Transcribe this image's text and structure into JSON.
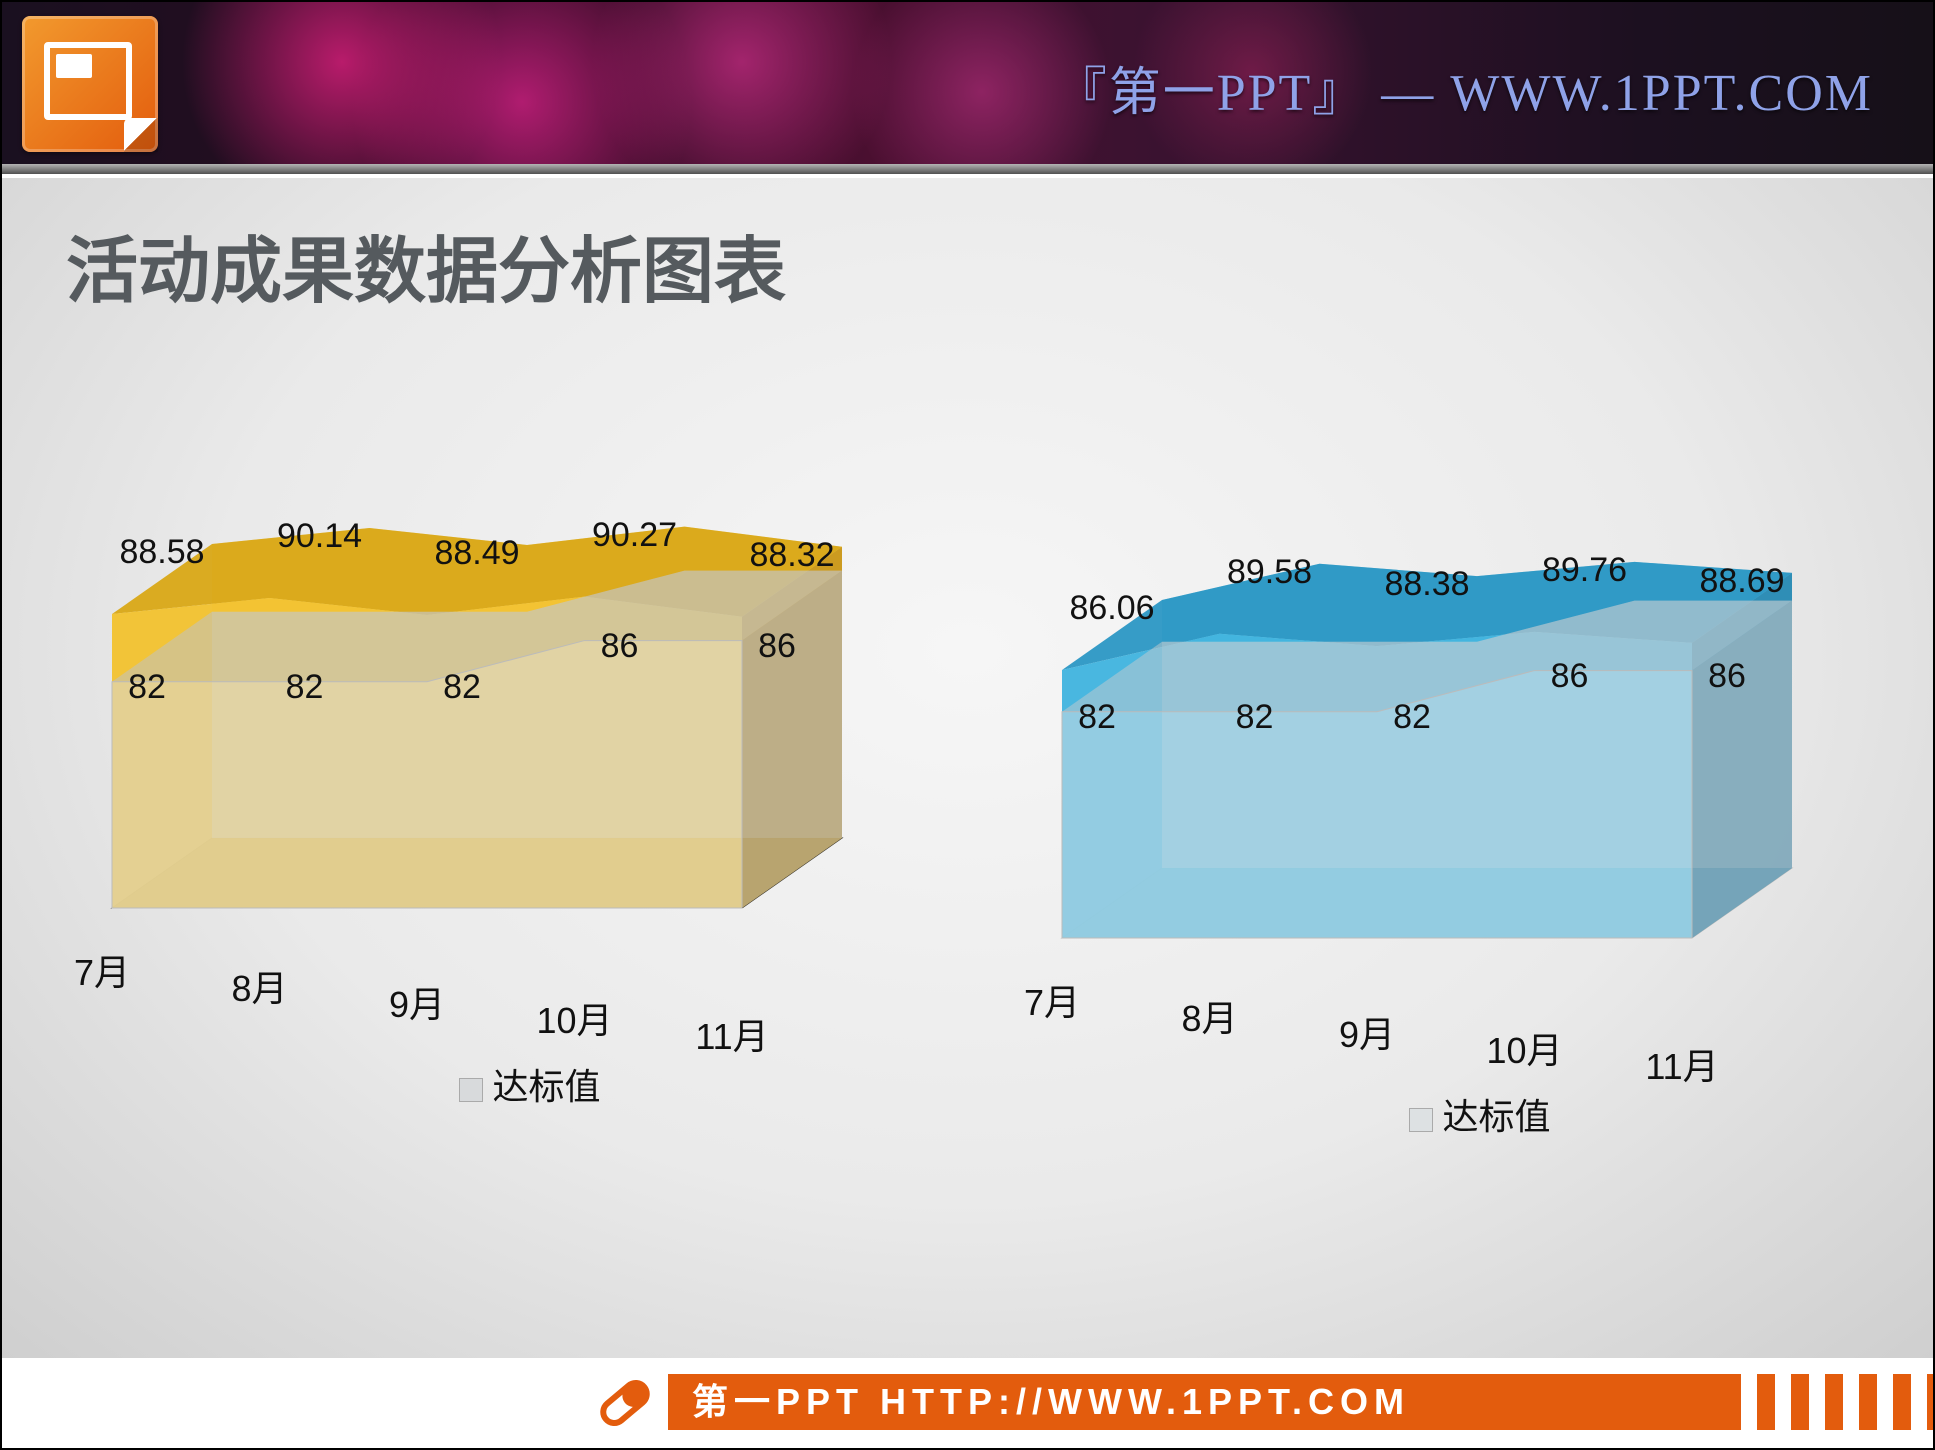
{
  "header": {
    "brand_text": "『第一PPT』 — WWW.1PPT.COM",
    "brand_color": "#8fa2e8"
  },
  "title": "活动成果数据分析图表",
  "title_color": "#555a5e",
  "title_fontsize": 72,
  "background_gradient": [
    "#f6f6f6",
    "#eaeaea",
    "#cfcfcf"
  ],
  "chart_left": {
    "type": "area-3d",
    "categories": [
      "7月",
      "8月",
      "9月",
      "10月",
      "11月"
    ],
    "series_value": {
      "values": [
        88.58,
        90.14,
        88.49,
        90.27,
        88.32
      ],
      "fill_color": "#f2c22e",
      "fill_color_top": "#d9a816",
      "side_color": "#c9981a",
      "opacity": 0.95
    },
    "series_baseline": {
      "name": "达标值",
      "values": [
        82,
        82,
        82,
        86,
        86
      ],
      "fill_color": "#d8dadc",
      "fill_color_top": "#bfc2c4",
      "side_color": "#aeb1b3",
      "opacity": 0.55
    },
    "floor_color": "#3a3a3a",
    "y_range": [
      60,
      95
    ],
    "value_label_fontsize": 34,
    "category_label_fontsize": 36,
    "depth_offset_x": 100,
    "depth_offset_y": 70,
    "legend_swatch_color": "#d8dadc"
  },
  "chart_right": {
    "type": "area-3d",
    "categories": [
      "7月",
      "8月",
      "9月",
      "10月",
      "11月"
    ],
    "series_value": {
      "values": [
        86.06,
        89.58,
        88.38,
        89.76,
        88.69
      ],
      "fill_color": "#3fb3de",
      "fill_color_top": "#2b97c4",
      "side_color": "#2a8ab3",
      "opacity": 0.95
    },
    "series_baseline": {
      "name": "达标值",
      "values": [
        82,
        82,
        82,
        86,
        86
      ],
      "fill_color": "#dde1e3",
      "fill_color_top": "#c7cbcd",
      "side_color": "#b6babc",
      "opacity": 0.5
    },
    "floor_color": "#d0d0d0",
    "y_range": [
      60,
      95
    ],
    "value_label_fontsize": 34,
    "category_label_fontsize": 36,
    "depth_offset_x": 100,
    "depth_offset_y": 70,
    "legend_swatch_color": "#dde1e3"
  },
  "footer": {
    "text": "第一PPT HTTP://WWW.1PPT.COM",
    "bg_color": "#e35c0d",
    "text_color": "#ffffff",
    "icon_color": "#e35c0d"
  }
}
